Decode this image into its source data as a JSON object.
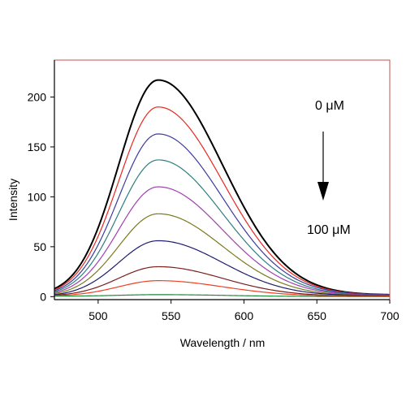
{
  "chart_data": {
    "type": "line",
    "title": "",
    "xlabel": "Wavelength / nm",
    "ylabel": "Intensity",
    "xlim": [
      470,
      700
    ],
    "ylim": [
      -3,
      237
    ],
    "x_ticks": [
      500,
      550,
      600,
      650,
      700
    ],
    "y_ticks": [
      0,
      50,
      100,
      150,
      200
    ],
    "x_tick_labels": [
      "500",
      "550",
      "600",
      "650",
      "700"
    ],
    "y_tick_labels": [
      "0",
      "50",
      "100",
      "150",
      "200"
    ],
    "frame_color": "#c0504d",
    "grid": false,
    "peak_wavelength_nm": 541,
    "series": [
      {
        "color": "#000000",
        "peak": 217,
        "baseline_470": 8,
        "tail_700": 2
      },
      {
        "color": "#e8281e",
        "peak": 190,
        "baseline_470": 7,
        "tail_700": 2
      },
      {
        "color": "#3b3b9e",
        "peak": 163,
        "baseline_470": 6,
        "tail_700": 2
      },
      {
        "color": "#2e7e7e",
        "peak": 137,
        "baseline_470": 5,
        "tail_700": 1.5
      },
      {
        "color": "#a040b0",
        "peak": 110,
        "baseline_470": 4,
        "tail_700": 1.5
      },
      {
        "color": "#7a7a1e",
        "peak": 83,
        "baseline_470": 3,
        "tail_700": 1
      },
      {
        "color": "#1e1e6e",
        "peak": 56,
        "baseline_470": 2,
        "tail_700": 1
      },
      {
        "color": "#7a1e1e",
        "peak": 30,
        "baseline_470": 1.5,
        "tail_700": 0.5
      },
      {
        "color": "#f04020",
        "peak": 16,
        "baseline_470": 1,
        "tail_700": 0.5
      },
      {
        "color": "#1e8a3a",
        "peak": 2,
        "baseline_470": 0.5,
        "tail_700": 0
      }
    ],
    "annotations": {
      "top_label": "0 μM",
      "bottom_label": "100 μM"
    }
  }
}
